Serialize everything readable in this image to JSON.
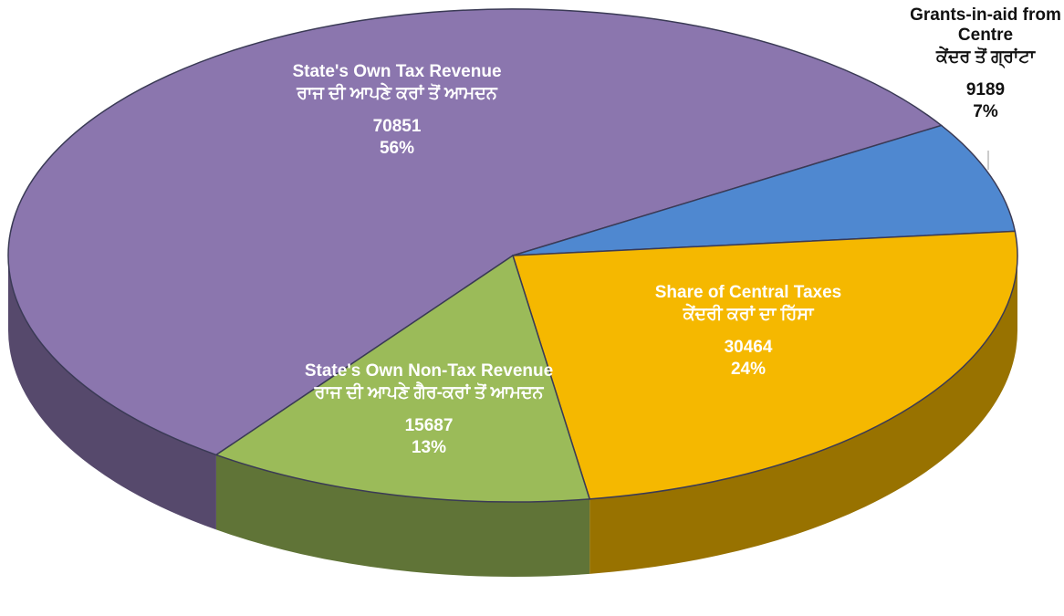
{
  "chart_data": {
    "type": "pie",
    "categories": [
      "State's Own Tax Revenue",
      "Grants-in-aid from Centre",
      "Share of Central Taxes",
      "State's Own Non-Tax Revenue"
    ],
    "categories_punjabi": [
      "ਰਾਜ ਦੀ ਆਪਣੇ ਕਰਾਂ ਤੋਂ ਆਮਦਨ",
      "ਕੇਂਦਰ ਤੋਂ ਗ੍ਰਾਂਟਾ",
      "ਕੇਂਦਰੀ ਕਰਾਂ ਦਾ ਹਿੱਸਾ",
      "ਰਾਜ ਦੀ ਆਪਣੇ ਗੈਰ-ਕਰਾਂ ਤੋਂ ਆਮਦਨ"
    ],
    "values": [
      70851,
      9189,
      30464,
      15687
    ],
    "percent_labels": [
      "56%",
      "7%",
      "24%",
      "13%"
    ],
    "colors": [
      "#8b76ae",
      "#4f88d0",
      "#f5b800",
      "#9bbb59"
    ]
  }
}
